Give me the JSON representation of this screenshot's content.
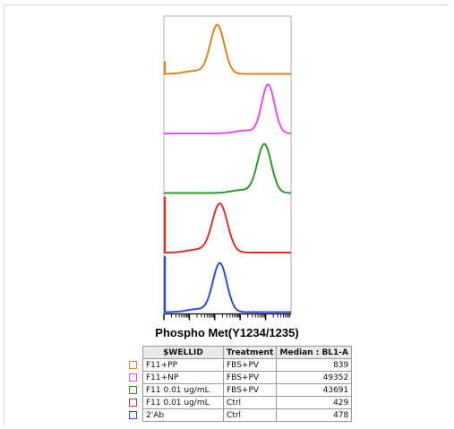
{
  "chart_data": {
    "type": "histogram-overlay",
    "title": "Phospho Met(Y1234/1235)",
    "x_scale": "log",
    "stacked_offset": true,
    "axis_visible": true,
    "tick_labels_visible": false,
    "series": [
      {
        "name": "F11+PP",
        "color": "#d8861e",
        "peak": 0.42,
        "width": 0.055,
        "median": 839
      },
      {
        "name": "F11+NP",
        "color": "#e650e6",
        "peak": 0.82,
        "width": 0.05,
        "median": 49352
      },
      {
        "name": "F11 0.01 ug/mL",
        "color": "#2b9a2b",
        "peak": 0.79,
        "width": 0.055,
        "median": 43691
      },
      {
        "name": "F11 0.01 ug/mL",
        "color": "#d8332a",
        "peak": 0.44,
        "width": 0.06,
        "median": 429
      },
      {
        "name": "2'Ab",
        "color": "#2a4fd8",
        "peak": 0.44,
        "width": 0.055,
        "median": 478
      }
    ]
  },
  "table": {
    "headers": [
      "$WELLID",
      "Treatment",
      "Median : BL1-A"
    ],
    "rows": [
      {
        "color": "#d8861e",
        "wellid": "F11+PP",
        "treatment": "FBS+PV",
        "median": "839"
      },
      {
        "color": "#e650e6",
        "wellid": "F11+NP",
        "treatment": "FBS+PV",
        "median": "49352"
      },
      {
        "color": "#2b9a2b",
        "wellid": "F11 0.01 ug/mL",
        "treatment": "FBS+PV",
        "median": "43691"
      },
      {
        "color": "#d8332a",
        "wellid": "F11 0.01 ug/mL",
        "treatment": "Ctrl",
        "median": "429"
      },
      {
        "color": "#2a4fd8",
        "wellid": "2'Ab",
        "treatment": "Ctrl",
        "median": "478"
      }
    ]
  }
}
